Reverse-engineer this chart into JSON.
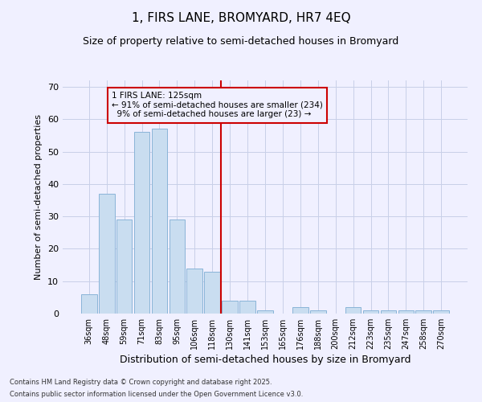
{
  "title": "1, FIRS LANE, BROMYARD, HR7 4EQ",
  "subtitle": "Size of property relative to semi-detached houses in Bromyard",
  "xlabel": "Distribution of semi-detached houses by size in Bromyard",
  "ylabel": "Number of semi-detached properties",
  "footnote1": "Contains HM Land Registry data © Crown copyright and database right 2025.",
  "footnote2": "Contains public sector information licensed under the Open Government Licence v3.0.",
  "categories": [
    "36sqm",
    "48sqm",
    "59sqm",
    "71sqm",
    "83sqm",
    "95sqm",
    "106sqm",
    "118sqm",
    "130sqm",
    "141sqm",
    "153sqm",
    "165sqm",
    "176sqm",
    "188sqm",
    "200sqm",
    "212sqm",
    "223sqm",
    "235sqm",
    "247sqm",
    "258sqm",
    "270sqm"
  ],
  "values": [
    6,
    37,
    29,
    56,
    57,
    29,
    14,
    13,
    4,
    4,
    1,
    0,
    2,
    1,
    0,
    2,
    1,
    1,
    1,
    1,
    1
  ],
  "bar_color": "#c9ddf0",
  "bar_edge_color": "#8ab4d8",
  "pct_smaller": 91,
  "n_smaller": 234,
  "pct_larger": 9,
  "n_larger": 23,
  "redline_index": 8,
  "ylim": [
    0,
    72
  ],
  "yticks": [
    0,
    10,
    20,
    30,
    40,
    50,
    60,
    70
  ],
  "bg_color": "#f0f0ff",
  "grid_color": "#c8d0e8",
  "annotation_box_edge": "#cc0000",
  "redline_color": "#cc0000",
  "title_fontsize": 11,
  "subtitle_fontsize": 9,
  "xlabel_fontsize": 9,
  "ylabel_fontsize": 8,
  "annot_fontsize": 7.5,
  "footnote_fontsize": 6
}
